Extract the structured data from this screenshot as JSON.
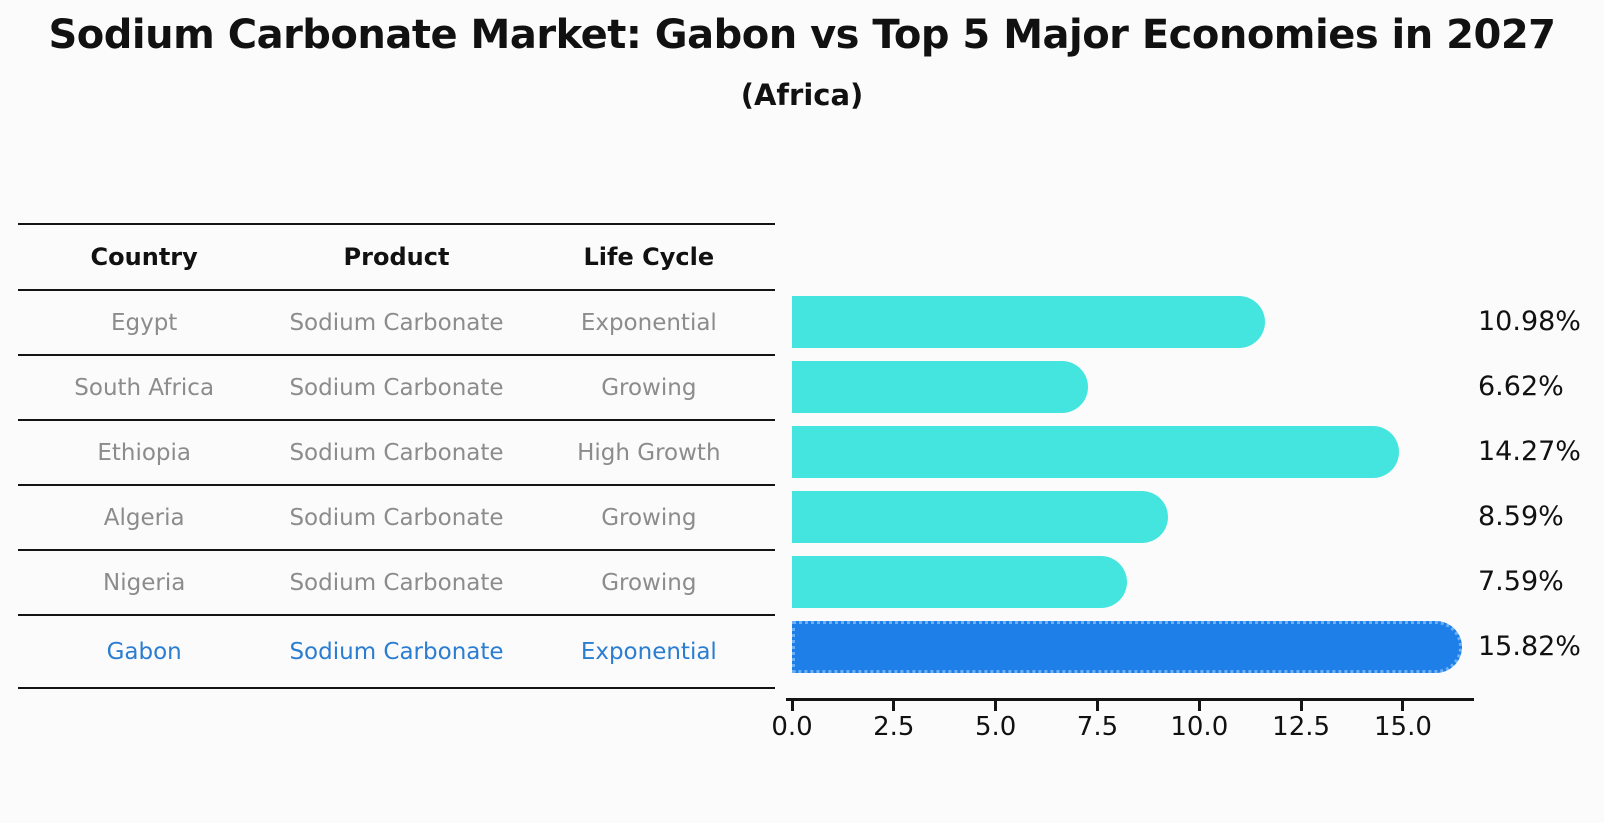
{
  "header": {
    "title": "Sodium Carbonate Market: Gabon vs Top 5 Major Economies in 2027",
    "subtitle": "(Africa)"
  },
  "table": {
    "headers": [
      "Country",
      "Product",
      "Life Cycle"
    ]
  },
  "chart_data": {
    "type": "bar",
    "orientation": "horizontal",
    "title": "Sodium Carbonate Market: Gabon vs Top 5 Major Economies in 2027",
    "subtitle": "(Africa)",
    "categories": [
      "Egypt",
      "South Africa",
      "Ethiopia",
      "Algeria",
      "Nigeria",
      "Gabon"
    ],
    "values": [
      10.98,
      6.62,
      14.27,
      8.59,
      7.59,
      15.82
    ],
    "value_labels": [
      "10.98%",
      "6.62%",
      "14.27%",
      "8.59%",
      "7.59%",
      "15.82%"
    ],
    "rows": [
      {
        "country": "Egypt",
        "product": "Sodium Carbonate",
        "life_cycle": "Exponential",
        "highlighted": false
      },
      {
        "country": "South Africa",
        "product": "Sodium Carbonate",
        "life_cycle": "Growing",
        "highlighted": false
      },
      {
        "country": "Ethiopia",
        "product": "Sodium Carbonate",
        "life_cycle": "High Growth",
        "highlighted": false
      },
      {
        "country": "Algeria",
        "product": "Sodium Carbonate",
        "life_cycle": "Growing",
        "highlighted": false
      },
      {
        "country": "Nigeria",
        "product": "Sodium Carbonate",
        "life_cycle": "Growing",
        "highlighted": false
      },
      {
        "country": "Gabon",
        "product": "Sodium Carbonate",
        "life_cycle": "Exponential",
        "highlighted": true
      }
    ],
    "x_ticks": [
      "0.0",
      "2.5",
      "5.0",
      "7.5",
      "10.0",
      "12.5",
      "15.0"
    ],
    "x_tick_values": [
      0,
      2.5,
      5,
      7.5,
      10,
      12.5,
      15
    ],
    "xlim": [
      0,
      16.7
    ],
    "grid": false,
    "legend": "none",
    "colors": {
      "bar": "#44e5de",
      "highlight_bar": "#1e7fe8",
      "highlight_edge": "#6db0f5",
      "highlight_text": "#2b7dd1",
      "row_text": "#8c8c8c",
      "axis": "#141414",
      "title_text": "#111111"
    }
  }
}
